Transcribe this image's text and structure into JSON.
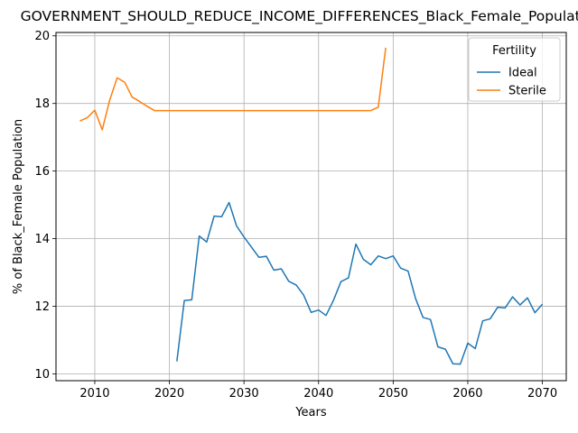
{
  "chart_data": {
    "type": "line",
    "title": "GOVERNMENT_SHOULD_REDUCE_INCOME_DIFFERENCES_Black_Female_Population",
    "xlabel": "Years",
    "ylabel": "% of Black_Female Population",
    "xlim": [
      2004.8,
      2073.2
    ],
    "ylim": [
      9.8,
      20.1
    ],
    "xticks": [
      2010,
      2020,
      2030,
      2040,
      2050,
      2060,
      2070
    ],
    "yticks": [
      10,
      12,
      14,
      16,
      18,
      20
    ],
    "grid": true,
    "legend": {
      "title": "Fertility",
      "placement": "top-right"
    },
    "series": [
      {
        "name": "Ideal",
        "color": "#1f77b4",
        "x": [
          2021,
          2022,
          2023,
          2024,
          2025,
          2026,
          2027,
          2028,
          2029,
          2030,
          2031,
          2032,
          2033,
          2034,
          2035,
          2036,
          2037,
          2038,
          2039,
          2040,
          2041,
          2042,
          2043,
          2044,
          2045,
          2046,
          2047,
          2048,
          2049,
          2050,
          2051,
          2052,
          2053,
          2054,
          2055,
          2056,
          2057,
          2058,
          2059,
          2060,
          2061,
          2062,
          2063,
          2064,
          2065,
          2066,
          2067,
          2068,
          2069,
          2070
        ],
        "y": [
          10.37,
          12.17,
          12.19,
          14.08,
          13.9,
          14.67,
          14.65,
          15.07,
          14.38,
          14.05,
          13.75,
          13.45,
          13.48,
          13.07,
          13.11,
          12.74,
          12.63,
          12.33,
          11.82,
          11.89,
          11.73,
          12.18,
          12.73,
          12.84,
          13.84,
          13.39,
          13.23,
          13.49,
          13.41,
          13.49,
          13.13,
          13.04,
          12.23,
          11.67,
          11.61,
          10.8,
          10.73,
          10.3,
          10.29,
          10.91,
          10.75,
          11.57,
          11.63,
          11.97,
          11.95,
          12.28,
          12.04,
          12.25,
          11.81,
          12.06
        ]
      },
      {
        "name": "Sterile",
        "color": "#ff7f0e",
        "x": [
          2008,
          2009,
          2010,
          2011,
          2012,
          2013,
          2014,
          2015,
          2016,
          2017,
          2018,
          2019,
          2020,
          2021,
          2022,
          2023,
          2024,
          2025,
          2026,
          2027,
          2028,
          2029,
          2030,
          2031,
          2032,
          2033,
          2034,
          2035,
          2036,
          2037,
          2038,
          2039,
          2040,
          2041,
          2042,
          2043,
          2044,
          2045,
          2046,
          2047,
          2048,
          2049
        ],
        "y": [
          17.48,
          17.58,
          17.8,
          17.22,
          18.1,
          18.76,
          18.63,
          18.19,
          18.06,
          17.92,
          17.79,
          17.79,
          17.79,
          17.79,
          17.79,
          17.79,
          17.79,
          17.79,
          17.79,
          17.79,
          17.79,
          17.79,
          17.79,
          17.79,
          17.79,
          17.79,
          17.79,
          17.79,
          17.79,
          17.79,
          17.79,
          17.79,
          17.79,
          17.79,
          17.79,
          17.79,
          17.79,
          17.79,
          17.79,
          17.79,
          17.89,
          19.65
        ]
      }
    ]
  }
}
